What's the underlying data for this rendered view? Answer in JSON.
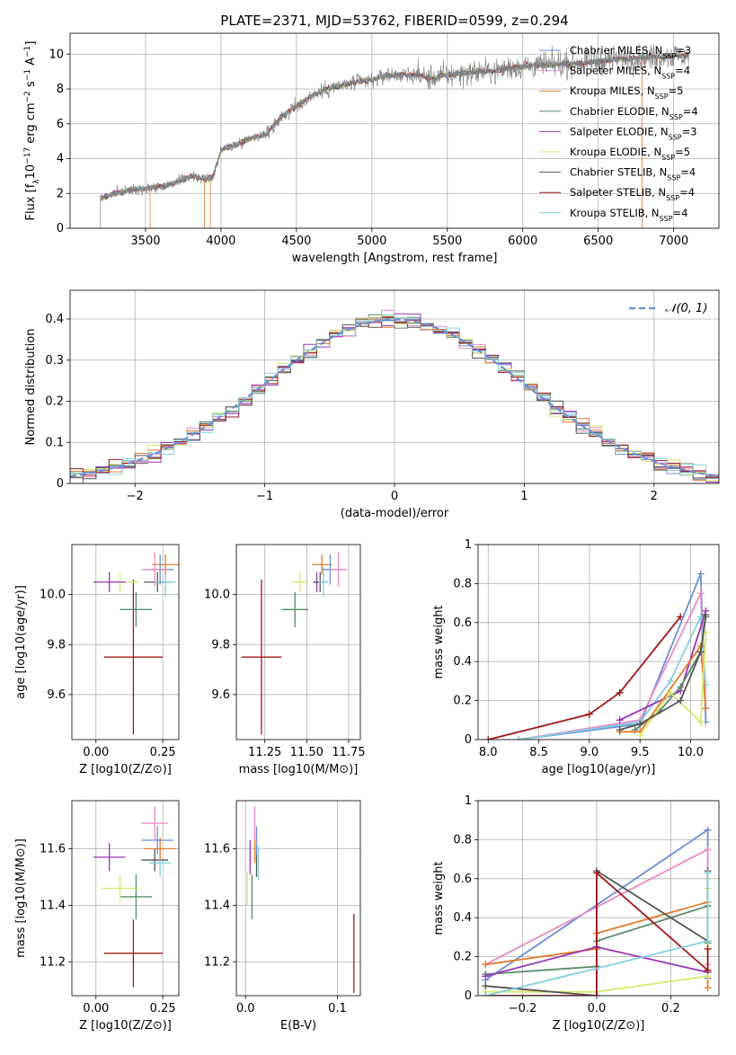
{
  "colors": {
    "Chabrier MILES": "#6b8fd6",
    "Salpeter MILES": "#e88bc6",
    "Kroupa MILES": "#e07c2e",
    "Chabrier ELODIE": "#5a8a6a",
    "Salpeter ELODIE": "#9a35b8",
    "Kroupa ELODIE": "#d8e86a",
    "Chabrier STELIB": "#555555",
    "Salpeter STELIB": "#a01818",
    "Kroupa STELIB": "#82d0dc"
  },
  "chart_data": [
    {
      "id": "spectrum",
      "type": "line",
      "title": "PLATE=2371, MJD=53762, FIBERID=0599, z=0.294",
      "xlabel": "wavelength [Angstrom, rest frame]",
      "ylabel_parts": [
        "Flux [f",
        "λ",
        "10",
        "−17",
        " erg cm",
        "−2",
        " s",
        "−1",
        " A",
        "−1",
        "]"
      ],
      "xlim": [
        3000,
        7300
      ],
      "ylim": [
        0,
        11.2
      ],
      "xticks": [
        3500,
        4000,
        4500,
        5000,
        5500,
        6000,
        6500,
        7000
      ],
      "yticks": [
        0,
        2,
        4,
        6,
        8,
        10
      ],
      "legend_position": "right",
      "legend": [
        {
          "label": "Chabrier MILES, N",
          "sub": "SSP",
          "suffix": "=3",
          "model": "Chabrier MILES"
        },
        {
          "label": "Salpeter MILES, N",
          "sub": "SSP",
          "suffix": "=4",
          "model": "Salpeter MILES"
        },
        {
          "label": "Kroupa MILES, N",
          "sub": "SSP",
          "suffix": "=5",
          "model": "Kroupa MILES"
        },
        {
          "label": "Chabrier ELODIE, N",
          "sub": "SSP",
          "suffix": "=4",
          "model": "Chabrier ELODIE"
        },
        {
          "label": "Salpeter ELODIE, N",
          "sub": "SSP",
          "suffix": "=3",
          "model": "Salpeter ELODIE"
        },
        {
          "label": "Kroupa ELODIE, N",
          "sub": "SSP",
          "suffix": "=5",
          "model": "Kroupa ELODIE"
        },
        {
          "label": "Chabrier STELIB, N",
          "sub": "SSP",
          "suffix": "=4",
          "model": "Chabrier STELIB"
        },
        {
          "label": "Salpeter STELIB, N",
          "sub": "SSP",
          "suffix": "=4",
          "model": "Salpeter STELIB"
        },
        {
          "label": "Kroupa STELIB, N",
          "sub": "SSP",
          "suffix": "=4",
          "model": "Kroupa STELIB"
        }
      ],
      "continuum": {
        "wavelength": [
          3200,
          3300,
          3400,
          3500,
          3600,
          3700,
          3800,
          3900,
          3950,
          4000,
          4100,
          4200,
          4300,
          4400,
          4500,
          4600,
          4700,
          4800,
          4900,
          5000,
          5100,
          5200,
          5300,
          5400,
          5500,
          5600,
          5700,
          5800,
          5900,
          6000,
          6200,
          6400,
          6600,
          6800,
          7000,
          7100
        ],
        "flux": [
          1.7,
          2.0,
          2.2,
          2.3,
          2.4,
          2.6,
          3.0,
          2.8,
          3.0,
          4.5,
          4.8,
          5.2,
          5.4,
          6.4,
          7.0,
          7.6,
          8.0,
          8.2,
          8.4,
          8.5,
          8.8,
          8.8,
          8.8,
          8.6,
          8.8,
          8.9,
          9.0,
          9.0,
          9.2,
          9.3,
          9.4,
          9.5,
          9.7,
          9.8,
          9.9,
          9.9
        ]
      }
    },
    {
      "id": "residuals",
      "type": "area",
      "xlabel": "(data-model)/error",
      "ylabel": "Normed distribution",
      "xlim": [
        -2.5,
        2.5
      ],
      "ylim": [
        0,
        0.47
      ],
      "xticks": [
        -2,
        -1,
        0,
        1,
        2
      ],
      "xtick_labels": [
        "−2",
        "−1",
        "0",
        "1",
        "2"
      ],
      "yticks": [
        0.0,
        0.1,
        0.2,
        0.3,
        0.4
      ],
      "legend_position": "top-right",
      "legend": [
        {
          "label": "𝒩(0, 1)",
          "color": "#6b8fd6"
        }
      ],
      "bin_width": 0.1
    },
    {
      "id": "age-vs-Z",
      "type": "scatter",
      "xlabel": "Z [log10(Z/Z⊙)]",
      "ylabel": "age  [log10(age/yr)]",
      "xlim": [
        -0.09,
        0.31
      ],
      "ylim": [
        9.42,
        10.2
      ],
      "xticks": [
        0.0,
        0.25
      ],
      "xtick_labels": [
        "0.00",
        "0.25"
      ],
      "yticks": [
        9.6,
        9.8,
        10.0
      ],
      "yticks_labels": [
        "9.6",
        "9.8",
        "10.0"
      ],
      "points": [
        {
          "model": "Salpeter STELIB",
          "x": 0.14,
          "y": 9.75,
          "xerr": 0.11,
          "yerr": 0.31
        },
        {
          "model": "Chabrier ELODIE",
          "x": 0.15,
          "y": 9.94,
          "xerr": 0.06,
          "yerr": 0.07
        },
        {
          "model": "Kroupa ELODIE",
          "x": 0.09,
          "y": 10.05,
          "xerr": 0.07,
          "yerr": 0.04
        },
        {
          "model": "Salpeter ELODIE",
          "x": 0.05,
          "y": 10.05,
          "xerr": 0.06,
          "yerr": 0.04
        },
        {
          "model": "Chabrier STELIB",
          "x": 0.23,
          "y": 10.05,
          "xerr": 0.05,
          "yerr": 0.04
        },
        {
          "model": "Kroupa STELIB",
          "x": 0.26,
          "y": 10.05,
          "xerr": 0.04,
          "yerr": 0.06
        },
        {
          "model": "Kroupa MILES",
          "x": 0.26,
          "y": 10.12,
          "xerr": 0.05,
          "yerr": 0.04
        },
        {
          "model": "Chabrier MILES",
          "x": 0.24,
          "y": 10.1,
          "xerr": 0.05,
          "yerr": 0.06
        },
        {
          "model": "Salpeter MILES",
          "x": 0.22,
          "y": 10.1,
          "xerr": 0.05,
          "yerr": 0.07
        }
      ]
    },
    {
      "id": "age-vs-mass",
      "type": "scatter",
      "xlabel": "mass [log10(M/M⊙)]",
      "xlim": [
        11.08,
        11.82
      ],
      "ylim": [
        9.42,
        10.2
      ],
      "xticks": [
        11.25,
        11.5,
        11.75
      ],
      "xtick_labels": [
        "11.25",
        "11.50",
        "11.75"
      ],
      "yticks": [
        9.6,
        9.8,
        10.0
      ],
      "yticks_labels": [
        "9.6",
        "9.8",
        "10.0"
      ],
      "points": [
        {
          "model": "Salpeter STELIB",
          "x": 11.23,
          "y": 9.75,
          "xerr": 0.12,
          "yerr": 0.31
        },
        {
          "model": "Chabrier ELODIE",
          "x": 11.43,
          "y": 9.94,
          "xerr": 0.08,
          "yerr": 0.07
        },
        {
          "model": "Kroupa ELODIE",
          "x": 11.46,
          "y": 10.05,
          "xerr": 0.05,
          "yerr": 0.04
        },
        {
          "model": "Salpeter ELODIE",
          "x": 11.56,
          "y": 10.05,
          "xerr": 0.02,
          "yerr": 0.04
        },
        {
          "model": "Chabrier STELIB",
          "x": 11.58,
          "y": 10.05,
          "xerr": 0.04,
          "yerr": 0.04
        },
        {
          "model": "Kroupa STELIB",
          "x": 11.6,
          "y": 10.05,
          "xerr": 0.03,
          "yerr": 0.06
        },
        {
          "model": "Kroupa MILES",
          "x": 11.59,
          "y": 10.12,
          "xerr": 0.06,
          "yerr": 0.04
        },
        {
          "model": "Chabrier MILES",
          "x": 11.64,
          "y": 10.1,
          "xerr": 0.05,
          "yerr": 0.06
        },
        {
          "model": "Salpeter MILES",
          "x": 11.69,
          "y": 10.1,
          "xerr": 0.05,
          "yerr": 0.07
        }
      ]
    },
    {
      "id": "mass-weight-vs-age",
      "type": "line",
      "xlabel": "age  [log10(age/yr)]",
      "ylabel": "mass weight",
      "xlim": [
        7.9,
        10.28
      ],
      "ylim": [
        0,
        1.0
      ],
      "xticks": [
        8.0,
        8.5,
        9.0,
        9.5,
        10.0
      ],
      "xtick_labels": [
        "8.0",
        "8.5",
        "9.0",
        "9.5",
        "10.0"
      ],
      "yticks": [
        0.0,
        0.2,
        0.4,
        0.6,
        0.8,
        1.0
      ],
      "series": [
        {
          "model": "Salpeter STELIB",
          "x": [
            8.0,
            9.0,
            9.3,
            9.9
          ],
          "y": [
            0.0,
            0.13,
            0.24,
            0.63
          ]
        },
        {
          "model": "Chabrier MILES",
          "x": [
            8.3,
            9.5,
            10.1,
            10.15
          ],
          "y": [
            0.0,
            0.08,
            0.85,
            0.09
          ]
        },
        {
          "model": "Salpeter MILES",
          "x": [
            8.3,
            9.5,
            10.1,
            10.15
          ],
          "y": [
            0.0,
            0.1,
            0.75,
            0.16
          ]
        },
        {
          "model": "Kroupa STELIB",
          "x": [
            8.3,
            9.5,
            9.8,
            10.1,
            10.15
          ],
          "y": [
            0.0,
            0.09,
            0.3,
            0.63,
            0.28
          ]
        },
        {
          "model": "Salpeter ELODIE",
          "x": [
            9.3,
            9.9,
            10.15
          ],
          "y": [
            0.1,
            0.25,
            0.66
          ]
        },
        {
          "model": "Chabrier ELODIE",
          "x": [
            9.45,
            9.7,
            9.9,
            10.1,
            10.15
          ],
          "y": [
            0.05,
            0.15,
            0.27,
            0.45,
            0.63
          ]
        },
        {
          "model": "Kroupa MILES",
          "x": [
            9.3,
            9.5,
            10.1,
            10.15
          ],
          "y": [
            0.04,
            0.04,
            0.48,
            0.16
          ]
        },
        {
          "model": "Kroupa ELODIE",
          "x": [
            9.5,
            9.8,
            10.1,
            10.15
          ],
          "y": [
            0.02,
            0.24,
            0.09,
            0.55
          ]
        },
        {
          "model": "Chabrier STELIB",
          "x": [
            9.3,
            9.5,
            9.9,
            10.1,
            10.15
          ],
          "y": [
            0.05,
            0.08,
            0.2,
            0.45,
            0.64
          ]
        }
      ]
    },
    {
      "id": "mass-vs-Z",
      "type": "scatter",
      "xlabel": "Z [log10(Z/Z⊙)]",
      "ylabel": "mass [log10(M/M⊙)]",
      "xlim": [
        -0.09,
        0.31
      ],
      "ylim": [
        11.08,
        11.77
      ],
      "xticks": [
        0.0,
        0.25
      ],
      "xtick_labels": [
        "0.00",
        "0.25"
      ],
      "yticks": [
        11.2,
        11.4,
        11.6
      ],
      "yticks_labels": [
        "11.2",
        "11.4",
        "11.6"
      ],
      "points": [
        {
          "model": "Salpeter STELIB",
          "x": 0.14,
          "y": 11.23,
          "xerr": 0.11,
          "yerr": 0.12
        },
        {
          "model": "Chabrier ELODIE",
          "x": 0.15,
          "y": 11.43,
          "xerr": 0.06,
          "yerr": 0.08
        },
        {
          "model": "Kroupa ELODIE",
          "x": 0.09,
          "y": 11.46,
          "xerr": 0.07,
          "yerr": 0.05
        },
        {
          "model": "Salpeter ELODIE",
          "x": 0.05,
          "y": 11.57,
          "xerr": 0.06,
          "yerr": 0.05
        },
        {
          "model": "Chabrier STELIB",
          "x": 0.22,
          "y": 11.56,
          "xerr": 0.05,
          "yerr": 0.04
        },
        {
          "model": "Kroupa STELIB",
          "x": 0.24,
          "y": 11.55,
          "xerr": 0.04,
          "yerr": 0.05
        },
        {
          "model": "Kroupa MILES",
          "x": 0.24,
          "y": 11.6,
          "xerr": 0.06,
          "yerr": 0.04
        },
        {
          "model": "Chabrier MILES",
          "x": 0.23,
          "y": 11.63,
          "xerr": 0.06,
          "yerr": 0.05
        },
        {
          "model": "Salpeter MILES",
          "x": 0.22,
          "y": 11.69,
          "xerr": 0.05,
          "yerr": 0.06
        }
      ]
    },
    {
      "id": "mass-vs-EBV",
      "type": "scatter",
      "xlabel": "E(B-V)",
      "xlim": [
        -0.01,
        0.125
      ],
      "ylim": [
        11.08,
        11.77
      ],
      "xticks": [
        0.0,
        0.1
      ],
      "xtick_labels": [
        "0.0",
        "0.1"
      ],
      "yticks": [
        11.2,
        11.4,
        11.6
      ],
      "yticks_labels": [
        "11.2",
        "11.4",
        "11.6"
      ],
      "points": [
        {
          "model": "Salpeter STELIB",
          "x": 0.118,
          "y": 11.23,
          "xerr": 0.0,
          "yerr": 0.14
        },
        {
          "model": "Chabrier ELODIE",
          "x": 0.007,
          "y": 11.43,
          "xerr": 0.0,
          "yerr": 0.08
        },
        {
          "model": "Kroupa ELODIE",
          "x": 0.002,
          "y": 11.46,
          "xerr": 0.0,
          "yerr": 0.06
        },
        {
          "model": "Salpeter ELODIE",
          "x": 0.005,
          "y": 11.57,
          "xerr": 0.0,
          "yerr": 0.06
        },
        {
          "model": "Chabrier STELIB",
          "x": 0.012,
          "y": 11.56,
          "xerr": 0.0,
          "yerr": 0.06
        },
        {
          "model": "Kroupa STELIB",
          "x": 0.014,
          "y": 11.55,
          "xerr": 0.0,
          "yerr": 0.06
        },
        {
          "model": "Kroupa MILES",
          "x": 0.01,
          "y": 11.6,
          "xerr": 0.0,
          "yerr": 0.05
        },
        {
          "model": "Chabrier MILES",
          "x": 0.012,
          "y": 11.63,
          "xerr": 0.0,
          "yerr": 0.05
        },
        {
          "model": "Salpeter MILES",
          "x": 0.01,
          "y": 11.69,
          "xerr": 0.0,
          "yerr": 0.06
        }
      ]
    },
    {
      "id": "mass-weight-vs-Z",
      "type": "line",
      "xlabel": "Z [log10(Z/Z⊙)]",
      "ylabel": "mass weight",
      "xlim": [
        -0.32,
        0.33
      ],
      "ylim": [
        0,
        1.0
      ],
      "xticks": [
        -0.2,
        0.0,
        0.2
      ],
      "xtick_labels": [
        "−0.2",
        "0.0",
        "0.2"
      ],
      "yticks": [
        0.0,
        0.2,
        0.4,
        0.6,
        0.8,
        1.0
      ],
      "series": [
        {
          "model": "Chabrier MILES",
          "x": [
            -0.3,
            0.3,
            0.3
          ],
          "y": [
            0.08,
            0.85,
            0.09
          ]
        },
        {
          "model": "Salpeter MILES",
          "x": [
            -0.3,
            0.3,
            0.3
          ],
          "y": [
            0.16,
            0.75,
            0.16
          ]
        },
        {
          "model": "Kroupa MILES",
          "x": [
            -0.3,
            0.0,
            0.0,
            0.3,
            0.3
          ],
          "y": [
            0.16,
            0.24,
            0.32,
            0.48,
            0.04
          ]
        },
        {
          "model": "Chabrier ELODIE",
          "x": [
            -0.3,
            0.0,
            0.0,
            0.3,
            0.3
          ],
          "y": [
            0.11,
            0.15,
            0.28,
            0.46,
            0.27
          ]
        },
        {
          "model": "Salpeter ELODIE",
          "x": [
            -0.3,
            0.0,
            0.0,
            0.3
          ],
          "y": [
            0.1,
            0.25,
            0.25,
            0.12
          ]
        },
        {
          "model": "Kroupa ELODIE",
          "x": [
            -0.3,
            0.0,
            0.3,
            0.3
          ],
          "y": [
            0.02,
            0.02,
            0.1,
            0.55
          ]
        },
        {
          "model": "Chabrier STELIB",
          "x": [
            -0.3,
            0.0,
            0.0,
            0.3,
            0.3
          ],
          "y": [
            0.05,
            0.0,
            0.64,
            0.28,
            0.64
          ]
        },
        {
          "model": "Salpeter STELIB",
          "x": [
            -0.3,
            0.0,
            0.0,
            0.3,
            0.3
          ],
          "y": [
            0.0,
            0.0,
            0.63,
            0.13,
            0.24
          ]
        },
        {
          "model": "Kroupa STELIB",
          "x": [
            -0.3,
            0.3,
            0.3
          ],
          "y": [
            0.0,
            0.28,
            0.63
          ]
        }
      ]
    }
  ]
}
